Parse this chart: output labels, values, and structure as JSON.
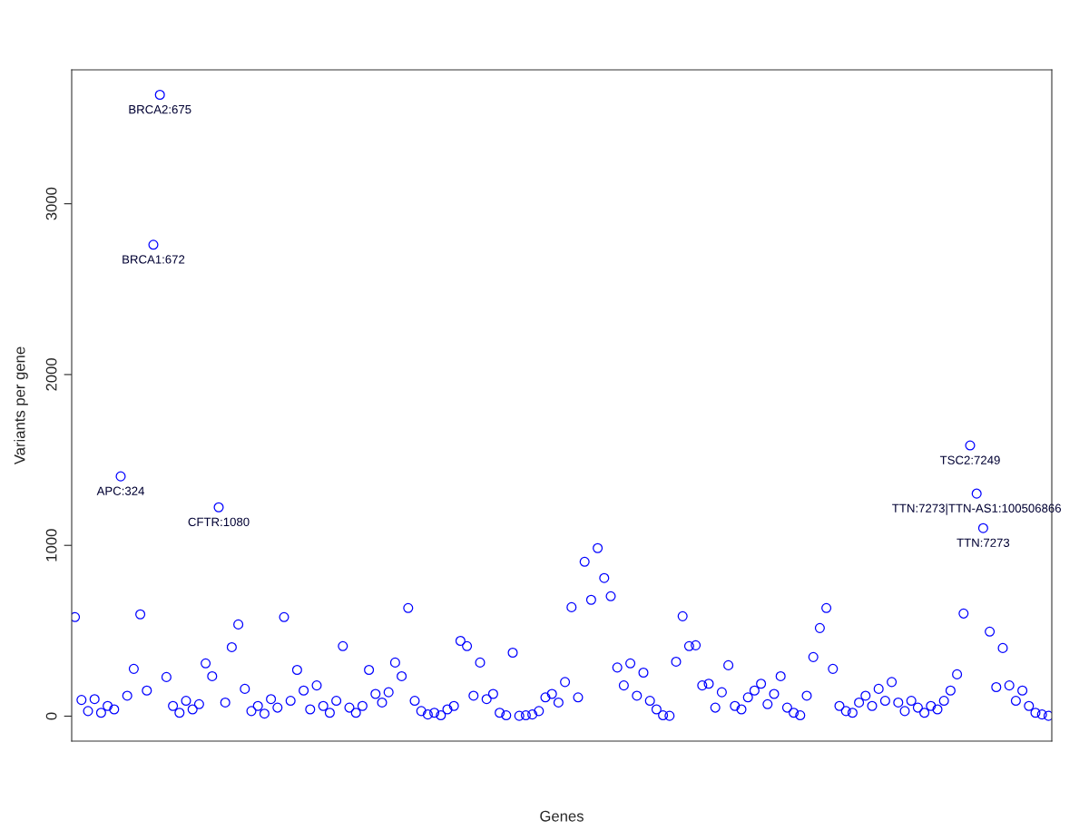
{
  "chart_data": {
    "type": "scatter",
    "xlabel": "Genes",
    "ylabel": "Variants per gene",
    "categories": [
      null,
      null,
      null,
      null,
      null,
      null,
      null,
      null,
      null,
      null,
      null,
      null,
      null,
      null,
      null,
      null,
      null,
      null,
      null,
      null,
      null,
      null,
      null,
      null,
      null,
      null,
      null,
      null,
      null,
      null,
      null,
      null,
      null,
      null,
      null,
      null,
      null,
      null,
      null,
      null,
      null,
      null,
      null,
      null,
      null,
      null,
      null,
      null,
      null,
      null,
      null,
      null,
      null,
      null,
      null,
      null,
      null,
      null,
      null,
      null,
      null,
      null,
      null,
      null,
      null,
      null,
      null,
      null,
      null,
      null,
      null,
      null,
      null,
      null,
      null,
      null,
      null,
      null,
      null,
      null,
      null,
      null,
      null,
      null,
      null,
      null,
      null,
      null,
      null,
      null,
      null,
      null,
      null,
      null,
      null,
      null,
      null,
      null,
      null,
      null,
      null,
      null,
      null,
      null,
      null,
      null,
      null,
      null,
      null,
      null,
      null,
      null,
      null,
      null,
      null,
      null,
      null,
      null,
      null,
      null,
      null,
      null,
      null,
      null,
      null,
      null,
      null,
      null,
      null,
      null,
      null,
      null,
      null,
      null,
      null,
      null,
      null,
      null,
      null,
      null,
      null,
      null,
      null,
      null,
      null,
      null,
      null,
      null,
      null,
      null
    ],
    "series": [
      {
        "color": "#0000ff",
        "values": [
          580,
          95,
          30,
          100,
          20,
          60,
          40,
          1404,
          120,
          277,
          596,
          150,
          2760,
          3638,
          229,
          60,
          20,
          90,
          40,
          70,
          309,
          234,
          1223,
          80,
          404,
          537,
          160,
          30,
          60,
          15,
          100,
          50,
          580,
          90,
          271,
          150,
          40,
          180,
          60,
          20,
          90,
          410,
          50,
          20,
          60,
          271,
          130,
          80,
          140,
          314,
          234,
          633,
          90,
          30,
          10,
          20,
          5,
          40,
          60,
          441,
          410,
          120,
          314,
          100,
          130,
          20,
          5,
          372,
          2,
          5,
          10,
          30,
          110,
          130,
          80,
          200,
          638,
          110,
          904,
          681,
          984,
          809,
          702,
          285,
          180,
          309,
          120,
          255,
          90,
          40,
          5,
          2,
          319,
          585,
          410,
          415,
          180,
          190,
          50,
          140,
          298,
          60,
          40,
          110,
          150,
          190,
          70,
          130,
          234,
          50,
          20,
          5,
          120,
          346,
          516,
          633,
          277,
          60,
          30,
          20,
          80,
          120,
          60,
          160,
          90,
          200,
          80,
          30,
          90,
          50,
          20,
          60,
          40,
          90,
          150,
          245,
          601,
          1585,
          1303,
          1101,
          495,
          170,
          399,
          180,
          90,
          150,
          60,
          20,
          10,
          2
        ]
      }
    ],
    "ylim": [
      -146,
      3784
    ],
    "yticks": [
      0,
      1000,
      2000,
      3000
    ],
    "marker": "circle",
    "grid": false,
    "tick_labels": "y",
    "annotations": [
      {
        "text": "BRCA2:675",
        "y": 3638
      },
      {
        "text": "BRCA1:672",
        "y": 2760
      },
      {
        "text": "APC:324",
        "y": 1404
      },
      {
        "text": "CFTR:1080",
        "y": 1223
      },
      {
        "text": "TSC2:7249",
        "y": 1585
      },
      {
        "text": "TTN:7273|TTN-AS1:100506866",
        "y": 1303
      },
      {
        "text": "TTN:7273",
        "y": 1101
      }
    ]
  }
}
